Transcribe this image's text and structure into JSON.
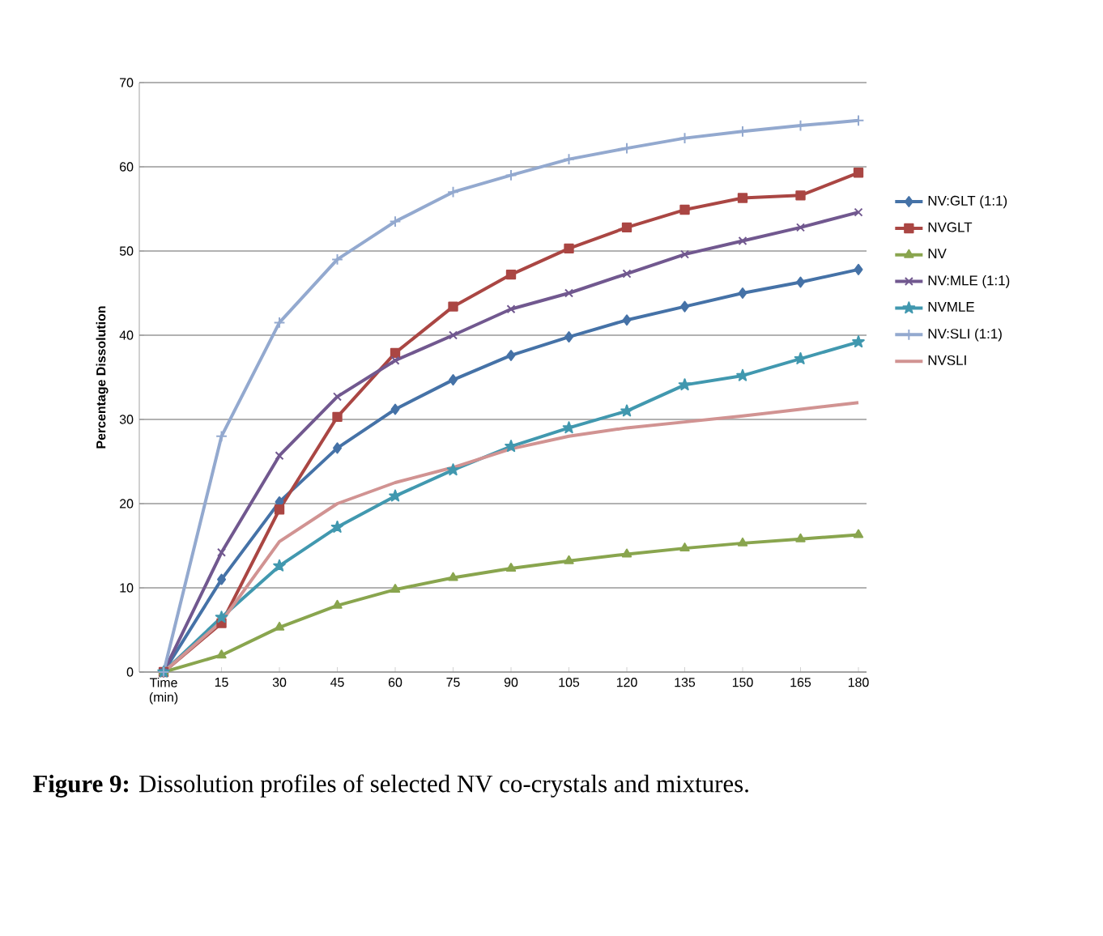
{
  "chart_data": {
    "type": "line",
    "ylabel": "Percentage Dissolution",
    "annotations": [
      "**Figure 9:** Dissolution profiles of selected NV co-crystals and mixtures."
    ],
    "categories": [
      "Time (min)",
      "15",
      "30",
      "45",
      "60",
      "75",
      "90",
      "105",
      "120",
      "135",
      "150",
      "165",
      "180"
    ],
    "ylim": [
      0,
      70
    ],
    "yticks": [
      0,
      10,
      20,
      30,
      40,
      50,
      60,
      70
    ],
    "grid": "y",
    "legend": "right",
    "series": [
      {
        "name": "NV:GLT (1:1)",
        "color": "#4572a7",
        "marker": "diamond",
        "values": [
          0,
          11,
          20.2,
          26.6,
          31.2,
          34.7,
          37.6,
          39.8,
          41.8,
          43.4,
          45,
          46.3,
          47.8
        ]
      },
      {
        "name": "NVGLT",
        "color": "#aa4643",
        "marker": "square",
        "values": [
          0,
          5.8,
          19.3,
          30.3,
          37.9,
          43.4,
          47.2,
          50.3,
          52.8,
          54.9,
          56.3,
          56.6,
          59.3
        ]
      },
      {
        "name": "NV",
        "color": "#89a54e",
        "marker": "triangle",
        "values": [
          0,
          2,
          5.3,
          7.9,
          9.8,
          11.2,
          12.3,
          13.2,
          14,
          14.7,
          15.3,
          15.8,
          16.3
        ]
      },
      {
        "name": "NV:MLE (1:1)",
        "color": "#71588f",
        "marker": "cross",
        "values": [
          0,
          14.2,
          25.7,
          32.7,
          37,
          40,
          43.1,
          45,
          47.3,
          49.6,
          51.2,
          52.8,
          54.6
        ]
      },
      {
        "name": "NVMLE",
        "color": "#4198af",
        "marker": "star",
        "values": [
          0,
          6.5,
          12.6,
          17.2,
          20.9,
          24,
          26.8,
          29,
          31,
          34.1,
          35.2,
          37.2,
          39.2
        ]
      },
      {
        "name": "NV:SLI (1:1)",
        "color": "#93a9cf",
        "marker": "plus",
        "values": [
          0,
          28,
          41.5,
          49,
          53.5,
          57,
          59,
          60.9,
          62.2,
          63.4,
          64.2,
          64.9,
          65.5
        ]
      },
      {
        "name": "NVSLI",
        "color": "#d19392",
        "marker": "none",
        "values": [
          0,
          6,
          15.5,
          20,
          22.5,
          24.3,
          26.5,
          28,
          29,
          29.7,
          30.4,
          31.2,
          32
        ]
      }
    ]
  }
}
